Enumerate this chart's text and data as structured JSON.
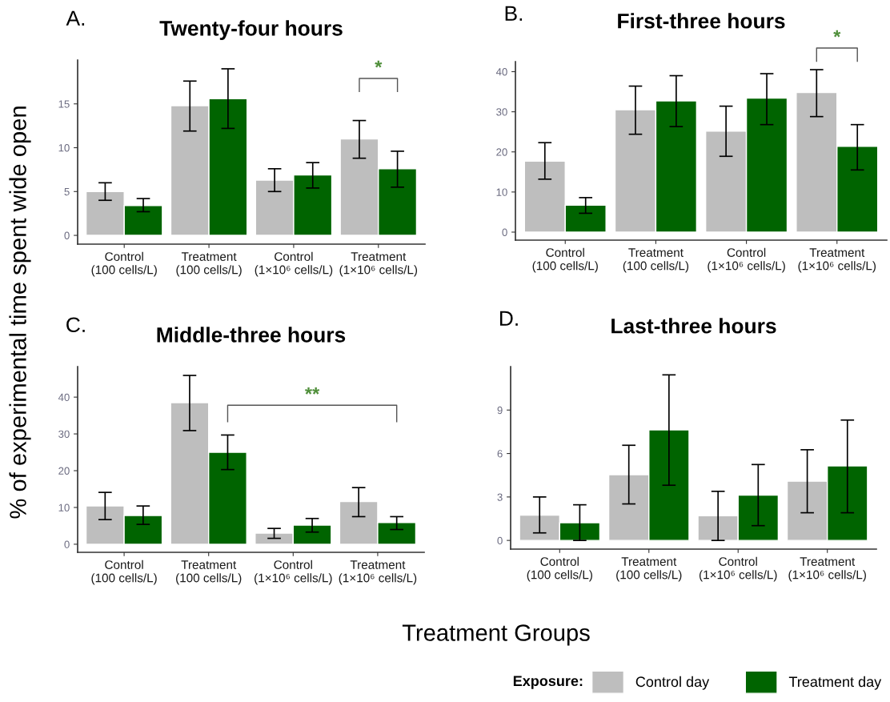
{
  "chart_data": [
    {
      "type": "bar",
      "title": "Twenty-four hours",
      "ylabel": "% of experimental time spent wide open",
      "xlabel": "Treatment Groups",
      "legend_title": "Exposure:",
      "legend": "bottom right",
      "annotations": [
        "A.",
        "*"
      ],
      "categories": [
        "Control\n(100 cells/L)",
        "Treatment\n(100 cells/L)",
        "Control\n(1×10⁶ cells/L)",
        "Treatment\n(1×10⁶ cells/L)"
      ],
      "series": [
        {
          "name": "Control day",
          "color": "#bebebe",
          "values": [
            5.0,
            14.8,
            6.3,
            11.0
          ],
          "errors": [
            [
              4.0,
              6.0
            ],
            [
              11.9,
              17.6
            ],
            [
              5.0,
              7.6
            ],
            [
              8.8,
              13.1
            ]
          ]
        },
        {
          "name": "Treatment day",
          "color": "#006400",
          "values": [
            3.4,
            15.6,
            6.9,
            7.6
          ],
          "errors": [
            [
              2.7,
              4.2
            ],
            [
              12.2,
              19.0
            ],
            [
              5.4,
              8.3
            ],
            [
              5.5,
              9.6
            ]
          ]
        }
      ],
      "ylim": [
        -1,
        20
      ],
      "yticks": [
        0,
        5,
        10,
        15
      ],
      "grid": false
    },
    {
      "type": "bar",
      "title": "First-three hours",
      "annotations": [
        "B.",
        "*"
      ],
      "categories": [
        "Control\n(100 cells/L)",
        "Treatment\n(100 cells/L)",
        "Control\n(1×10⁶ cells/L)",
        "Treatment\n(1×10⁶ cells/L)"
      ],
      "series": [
        {
          "color": "#bebebe",
          "values": [
            17.7,
            30.5,
            25.2,
            34.8
          ],
          "errors": [
            [
              13.2,
              22.3
            ],
            [
              24.4,
              36.4
            ],
            [
              18.9,
              31.4
            ],
            [
              28.8,
              40.5
            ]
          ]
        },
        {
          "color": "#006400",
          "values": [
            6.7,
            32.7,
            33.4,
            21.4
          ],
          "errors": [
            [
              4.7,
              8.6
            ],
            [
              26.3,
              39.0
            ],
            [
              26.8,
              39.5
            ],
            [
              15.5,
              26.8
            ]
          ]
        }
      ],
      "ylim": [
        -2,
        42.5
      ],
      "yticks": [
        0,
        10,
        20,
        30,
        40
      ],
      "grid": false
    },
    {
      "type": "bar",
      "title": "Middle-three hours",
      "annotations": [
        "C.",
        "**"
      ],
      "categories": [
        "Control\n(100 cells/L)",
        "Treatment\n(100 cells/L)",
        "Control\n(1×10⁶ cells/L)",
        "Treatment\n(1×10⁶ cells/L)"
      ],
      "series": [
        {
          "color": "#bebebe",
          "values": [
            10.4,
            38.5,
            3.0,
            11.6
          ],
          "errors": [
            [
              6.7,
              14.1
            ],
            [
              30.9,
              45.9
            ],
            [
              1.6,
              4.3
            ],
            [
              7.5,
              15.4
            ]
          ]
        },
        {
          "color": "#006400",
          "values": [
            7.8,
            25.0,
            5.2,
            5.9
          ],
          "errors": [
            [
              5.4,
              10.4
            ],
            [
              20.3,
              29.7
            ],
            [
              3.3,
              7.0
            ],
            [
              4.0,
              7.5
            ]
          ]
        }
      ],
      "ylim": [
        -2.2,
        48.3
      ],
      "yticks": [
        0,
        10,
        20,
        30,
        40
      ],
      "grid": false
    },
    {
      "type": "bar",
      "title": "Last-three hours",
      "annotations": [
        "D."
      ],
      "categories": [
        "Control\n(100 cells/L)",
        "Treatment\n(100 cells/L)",
        "Control\n(1×10⁶ cells/L)",
        "Treatment\n(1×10⁶ cells/L)"
      ],
      "series": [
        {
          "color": "#bebebe",
          "values": [
            1.74,
            4.54,
            1.7,
            4.09
          ],
          "errors": [
            [
              0.52,
              3.0
            ],
            [
              2.52,
              6.57
            ],
            [
              0.0,
              3.39
            ],
            [
              1.91,
              6.26
            ]
          ]
        },
        {
          "color": "#006400",
          "values": [
            1.22,
            7.63,
            3.13,
            5.15
          ],
          "errors": [
            [
              0.0,
              2.46
            ],
            [
              3.81,
              11.43
            ],
            [
              1.02,
              5.24
            ],
            [
              1.91,
              8.31
            ]
          ]
        }
      ],
      "ylim": [
        -0.6,
        12
      ],
      "yticks": [
        0,
        3,
        6,
        9
      ],
      "grid": false
    }
  ]
}
